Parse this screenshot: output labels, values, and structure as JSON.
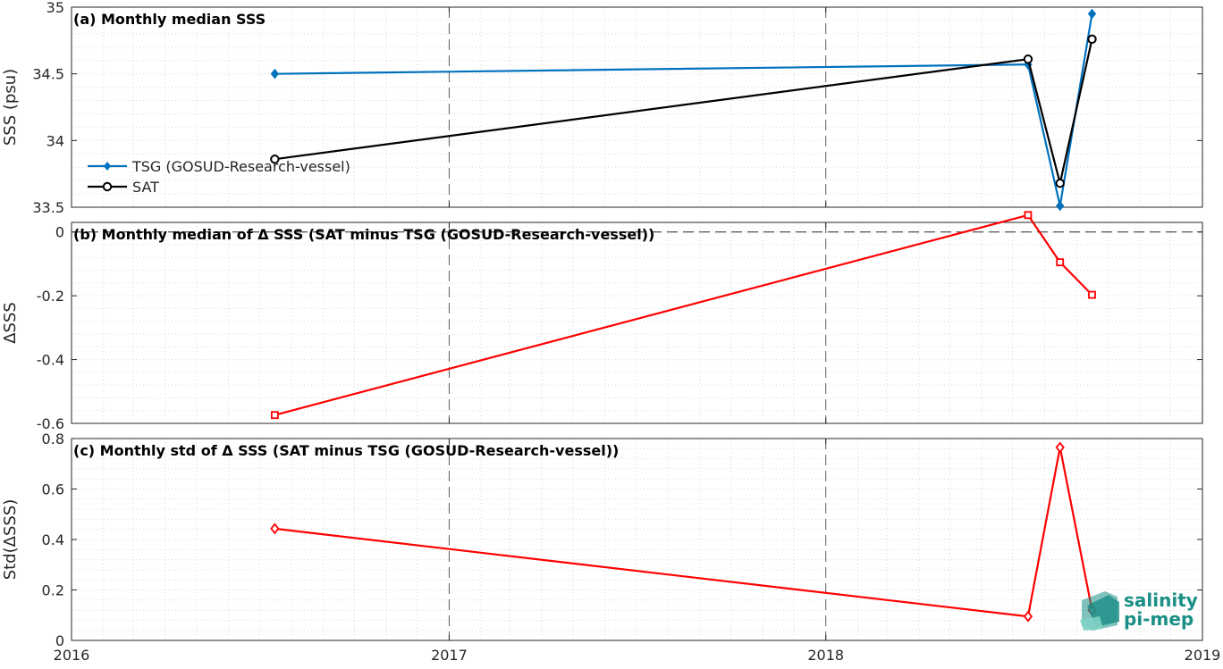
{
  "chart_data": [
    {
      "type": "line",
      "panel": "a",
      "title": "(a) Monthly median SSS",
      "ylabel": "SSS (psu)",
      "xlim": [
        "2016-01-01",
        "2019-01-01"
      ],
      "ylim": [
        33.5,
        35
      ],
      "yticks": [
        33.5,
        34,
        34.5,
        35
      ],
      "ytick_labels": [
        "33.5",
        "34",
        "34.5",
        "35"
      ],
      "legend_position": "left",
      "series": [
        {
          "name": "TSG (GOSUD-Research-vessel)",
          "color": "#0072bd",
          "marker": "diamond-filled",
          "x": [
            "2016-07-16",
            "2018-07-16",
            "2018-08-16",
            "2018-09-16"
          ],
          "y": [
            34.5,
            34.57,
            33.51,
            34.95
          ]
        },
        {
          "name": "SAT",
          "color": "#000000",
          "marker": "circle-open",
          "x": [
            "2016-07-16",
            "2018-07-16",
            "2018-08-16",
            "2018-09-16"
          ],
          "y": [
            33.86,
            34.61,
            33.68,
            34.76
          ]
        }
      ]
    },
    {
      "type": "line",
      "panel": "b",
      "title": "(b) Monthly median of Δ SSS (SAT minus TSG (GOSUD-Research-vessel))",
      "ylabel": "ΔSSS",
      "xlim": [
        "2016-01-01",
        "2019-01-01"
      ],
      "ylim": [
        -0.6,
        0.03
      ],
      "yticks": [
        -0.6,
        -0.4,
        -0.2,
        0
      ],
      "ytick_labels": [
        "-0.6",
        "-0.4",
        "-0.2",
        "0"
      ],
      "zero_line": true,
      "series": [
        {
          "color": "#ff0000",
          "marker": "square-open",
          "x": [
            "2016-07-16",
            "2018-07-16",
            "2018-08-16",
            "2018-09-16"
          ],
          "y": [
            -0.574,
            0.053,
            -0.095,
            -0.197
          ]
        }
      ]
    },
    {
      "type": "line",
      "panel": "c",
      "title": "(c) Monthly std of Δ SSS (SAT minus TSG (GOSUD-Research-vessel))",
      "ylabel": "Std(ΔSSS)",
      "xlim": [
        "2016-01-01",
        "2019-01-01"
      ],
      "ylim": [
        0,
        0.8
      ],
      "yticks": [
        0,
        0.2,
        0.4,
        0.6,
        0.8
      ],
      "ytick_labels": [
        "0",
        "0.2",
        "0.4",
        "0.6",
        "0.8"
      ],
      "xticks": [
        "2016-01-01",
        "2017-01-01",
        "2018-01-01",
        "2019-01-01"
      ],
      "xtick_labels": [
        "2016",
        "2017",
        "2018",
        "2019"
      ],
      "series": [
        {
          "color": "#ff0000",
          "marker": "diamond-open",
          "x": [
            "2016-07-16",
            "2018-07-16",
            "2018-08-16",
            "2018-09-16"
          ],
          "y": [
            0.443,
            0.095,
            0.765,
            0.12
          ]
        }
      ]
    }
  ],
  "logo": {
    "line1": "salinity",
    "line2": "pi-mep",
    "color": "#1a8f86"
  }
}
